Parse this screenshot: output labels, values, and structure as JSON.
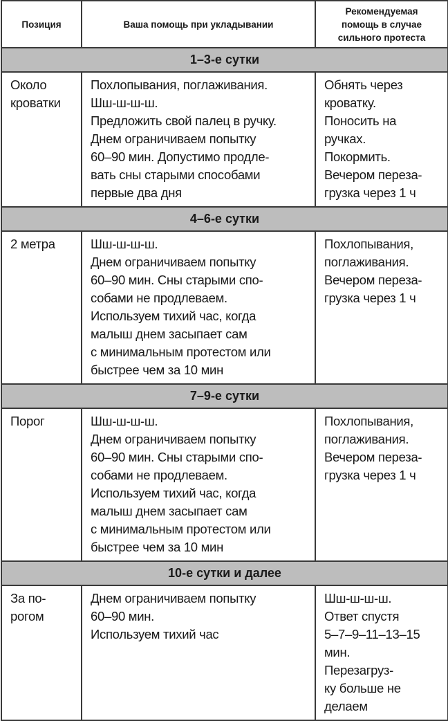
{
  "header": [
    "Позиция",
    "Ваша помощь при укладывании",
    "Рекомендуемая помощь в случае сильного протеста"
  ],
  "header_lines": [
    [
      "Позиция"
    ],
    [
      "Ваша помощь при укладывании"
    ],
    [
      "Рекомендуемая",
      "помощь в случае",
      "сильного протеста"
    ]
  ],
  "section_color": "#bdbdbd",
  "sections": [
    {
      "title": "1–3-е сутки",
      "cells": [
        [
          "Около",
          "кроватки"
        ],
        [
          "Похлопывания, поглаживания.",
          "Шш-ш-ш-ш.",
          "Предложить свой палец в ручку.",
          "Днем ограничиваем попытку",
          "60–90 мин. Допустимо продле-",
          "вать сны старыми способами",
          "первые два дня"
        ],
        [
          "Обнять через",
          "кроватку.",
          "Поносить на",
          "ручках.",
          "Покормить.",
          "Вечером переза-",
          "грузка через 1 ч"
        ]
      ]
    },
    {
      "title": "4–6-е сутки",
      "cells": [
        [
          "2 метра"
        ],
        [
          "Шш-ш-ш-ш.",
          "Днем ограничиваем попытку",
          "60–90 мин. Сны старыми спо-",
          "собами не продлеваем.",
          "Используем тихий час, когда",
          "малыш днем засыпает сам",
          "с минимальным протестом или",
          "быстрее чем за 10 мин"
        ],
        [
          "Похлопывания,",
          "поглаживания.",
          "Вечером переза-",
          "грузка через 1 ч"
        ]
      ]
    },
    {
      "title": "7–9-е сутки",
      "cells": [
        [
          "Порог"
        ],
        [
          "Шш-ш-ш-ш.",
          "Днем ограничиваем попытку",
          "60–90 мин. Сны старыми спо-",
          "собами не продлеваем.",
          "Используем тихий час, когда",
          "малыш днем засыпает сам",
          "с минимальным протестом или",
          "быстрее чем за 10 мин"
        ],
        [
          "Похлопывания,",
          "поглаживания.",
          "Вечером переза-",
          "грузка через 1 ч"
        ]
      ]
    },
    {
      "title": "10-е сутки и далее",
      "cells": [
        [
          "За по-",
          "рогом"
        ],
        [
          "Днем ограничиваем попытку",
          "60–90 мин.",
          "Используем тихий час"
        ],
        [
          "Шш-ш-ш-ш.",
          "Ответ спустя",
          "5–7–9–11–13–15",
          "мин.",
          "Перезагруз-",
          "ку больше не",
          "делаем"
        ]
      ]
    }
  ]
}
